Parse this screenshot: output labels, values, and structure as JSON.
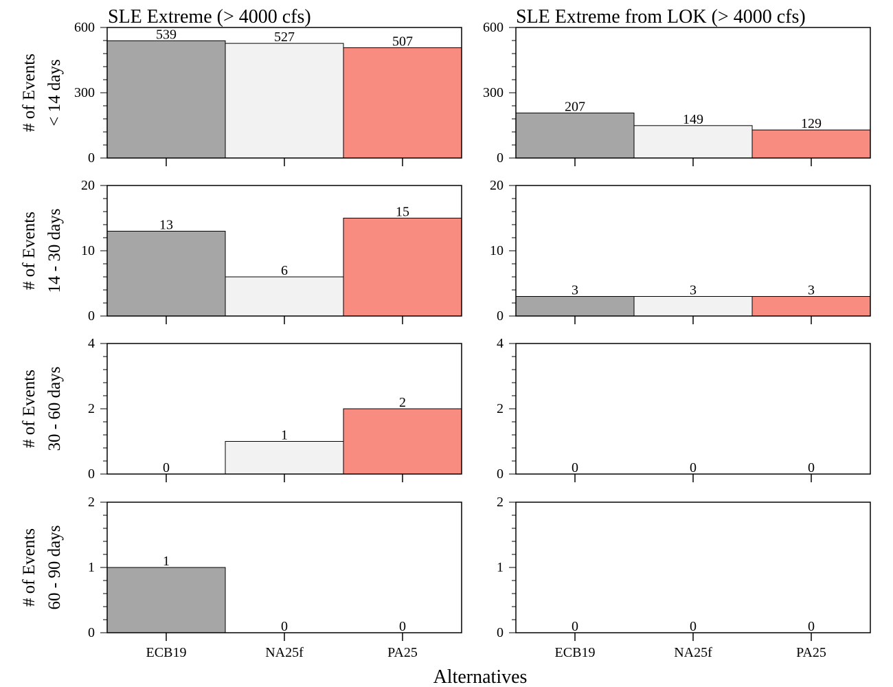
{
  "figure": {
    "xlabel": "Alternatives",
    "categories": [
      "ECB19",
      "NA25f",
      "PA25"
    ],
    "colors": {
      "ECB19": "#a6a6a6",
      "NA25f": "#f2f2f2",
      "PA25": "#f88c80"
    },
    "column_titles": [
      "SLE Extreme (> 4000 cfs)",
      "SLE Extreme from LOK (> 4000 cfs)"
    ],
    "row_labels": [
      {
        "line1": "# of Events",
        "line2": "< 14 days"
      },
      {
        "line1": "# of Events",
        "line2": "14 - 30 days"
      },
      {
        "line1": "# of Events",
        "line2": "30 - 60 days"
      },
      {
        "line1": "# of Events",
        "line2": "60 - 90 days"
      }
    ]
  },
  "chart_data": [
    {
      "type": "bar",
      "title": "SLE Extreme (> 4000 cfs)",
      "ylabel": "# of Events < 14 days",
      "xlabel": "",
      "categories": [
        "ECB19",
        "NA25f",
        "PA25"
      ],
      "values": [
        539,
        527,
        507
      ],
      "ylim": [
        0,
        600
      ],
      "yticks": [
        0,
        300,
        600
      ]
    },
    {
      "type": "bar",
      "title": "SLE Extreme from LOK (> 4000 cfs)",
      "ylabel": "",
      "xlabel": "",
      "categories": [
        "ECB19",
        "NA25f",
        "PA25"
      ],
      "values": [
        207,
        149,
        129
      ],
      "ylim": [
        0,
        600
      ],
      "yticks": [
        0,
        300,
        600
      ]
    },
    {
      "type": "bar",
      "title": "",
      "ylabel": "# of Events 14 - 30 days",
      "xlabel": "",
      "categories": [
        "ECB19",
        "NA25f",
        "PA25"
      ],
      "values": [
        13,
        6,
        15
      ],
      "ylim": [
        0,
        20
      ],
      "yticks": [
        0,
        10,
        20
      ]
    },
    {
      "type": "bar",
      "title": "",
      "ylabel": "",
      "xlabel": "",
      "categories": [
        "ECB19",
        "NA25f",
        "PA25"
      ],
      "values": [
        3,
        3,
        3
      ],
      "ylim": [
        0,
        20
      ],
      "yticks": [
        0,
        10,
        20
      ]
    },
    {
      "type": "bar",
      "title": "",
      "ylabel": "# of Events 30 - 60 days",
      "xlabel": "",
      "categories": [
        "ECB19",
        "NA25f",
        "PA25"
      ],
      "values": [
        0,
        1,
        2
      ],
      "ylim": [
        0,
        4
      ],
      "yticks": [
        0,
        2,
        4
      ]
    },
    {
      "type": "bar",
      "title": "",
      "ylabel": "",
      "xlabel": "",
      "categories": [
        "ECB19",
        "NA25f",
        "PA25"
      ],
      "values": [
        0,
        0,
        0
      ],
      "ylim": [
        0,
        4
      ],
      "yticks": [
        0,
        2,
        4
      ]
    },
    {
      "type": "bar",
      "title": "",
      "ylabel": "# of Events 60 - 90 days",
      "xlabel": "Alternatives",
      "categories": [
        "ECB19",
        "NA25f",
        "PA25"
      ],
      "values": [
        1,
        0,
        0
      ],
      "ylim": [
        0,
        2
      ],
      "yticks": [
        0,
        1,
        2
      ]
    },
    {
      "type": "bar",
      "title": "",
      "ylabel": "",
      "xlabel": "Alternatives",
      "categories": [
        "ECB19",
        "NA25f",
        "PA25"
      ],
      "values": [
        0,
        0,
        0
      ],
      "ylim": [
        0,
        2
      ],
      "yticks": [
        0,
        1,
        2
      ]
    }
  ]
}
